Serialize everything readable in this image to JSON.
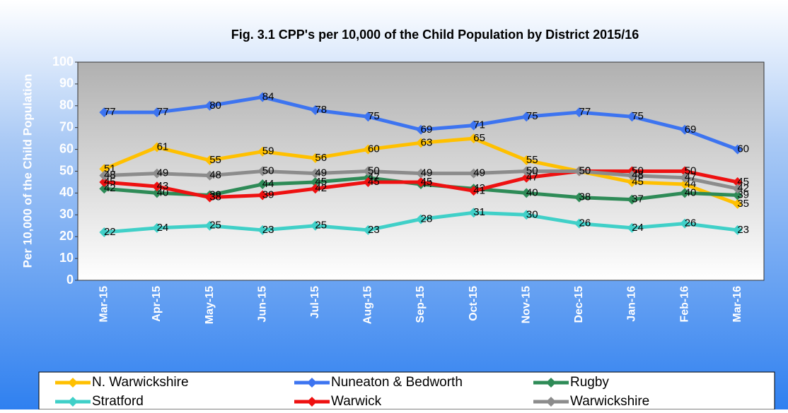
{
  "chart_data": {
    "type": "line",
    "title": "Fig. 3.1 CPP's  per 10,000 of the Child Population by District 2015/16",
    "y_label": "Per 10,000  of the Child Population",
    "categories": [
      "Mar-15",
      "Apr-15",
      "May-15",
      "Jun-15",
      "Jul-15",
      "Aug-15",
      "Sep-15",
      "Oct-15",
      "Nov-15",
      "Dec-15",
      "Jan-16",
      "Feb-16",
      "Mar-16"
    ],
    "series": [
      {
        "name": "N. Warwickshire",
        "color": "#ffc000",
        "values": [
          51,
          61,
          55,
          59,
          56,
          60,
          63,
          65,
          55,
          50,
          45,
          44,
          35
        ]
      },
      {
        "name": "Nuneaton & Bedworth",
        "color": "#3d74f0",
        "values": [
          77,
          77,
          80,
          84,
          78,
          75,
          69,
          71,
          75,
          77,
          75,
          69,
          60
        ]
      },
      {
        "name": "Rugby",
        "color": "#2e8b57",
        "values": [
          42,
          40,
          39,
          44,
          45,
          47,
          44,
          42,
          40,
          38,
          37,
          40,
          39
        ]
      },
      {
        "name": "Stratford",
        "color": "#40d0c8",
        "values": [
          22,
          24,
          25,
          23,
          25,
          23,
          28,
          31,
          30,
          26,
          24,
          26,
          23
        ]
      },
      {
        "name": "Warwick",
        "color": "#ee1111",
        "values": [
          45,
          43,
          38,
          39,
          42,
          45,
          45,
          41,
          47,
          50,
          50,
          50,
          45
        ]
      },
      {
        "name": "Warwickshire",
        "color": "#8c8c8c",
        "values": [
          48,
          49,
          48,
          50,
          49,
          50,
          49,
          49,
          50,
          50,
          48,
          47,
          42
        ]
      }
    ],
    "ylim": [
      0,
      100
    ],
    "yticks": [
      0,
      10,
      20,
      30,
      40,
      50,
      60,
      70,
      80,
      90,
      100
    ],
    "legend": "bottom"
  }
}
